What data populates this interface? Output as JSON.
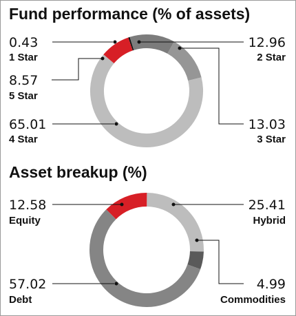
{
  "chart_data": [
    {
      "type": "pie",
      "title": "Fund performance (% of assets)",
      "series": [
        {
          "name": "1 Star",
          "value": 0.43,
          "color": "#111111"
        },
        {
          "name": "2 Star",
          "value": 12.96,
          "color": "#7c7c7c"
        },
        {
          "name": "3 Star",
          "value": 13.03,
          "color": "#969696"
        },
        {
          "name": "4 Star",
          "value": 65.01,
          "color": "#bdbdbd"
        },
        {
          "name": "5 Star",
          "value": 8.57,
          "color": "#d71f26"
        }
      ],
      "labels": [
        {
          "value": "0.43",
          "name": "1 Star"
        },
        {
          "value": "12.96",
          "name": "2 Star"
        },
        {
          "value": "13.03",
          "name": "3 Star"
        },
        {
          "value": "65.01",
          "name": "4 Star"
        },
        {
          "value": "8.57",
          "name": "5 Star"
        }
      ]
    },
    {
      "type": "pie",
      "title": "Asset breakup (%)",
      "series": [
        {
          "name": "Equity",
          "value": 12.58,
          "color": "#d71f26"
        },
        {
          "name": "Hybrid",
          "value": 25.41,
          "color": "#bdbdbd"
        },
        {
          "name": "Commodities",
          "value": 4.99,
          "color": "#5a5a5a"
        },
        {
          "name": "Debt",
          "value": 57.02,
          "color": "#858585"
        }
      ],
      "labels": [
        {
          "value": "12.58",
          "name": "Equity"
        },
        {
          "value": "25.41",
          "name": "Hybrid"
        },
        {
          "value": "4.99",
          "name": "Commodities"
        },
        {
          "value": "57.02",
          "name": "Debt"
        }
      ]
    }
  ]
}
